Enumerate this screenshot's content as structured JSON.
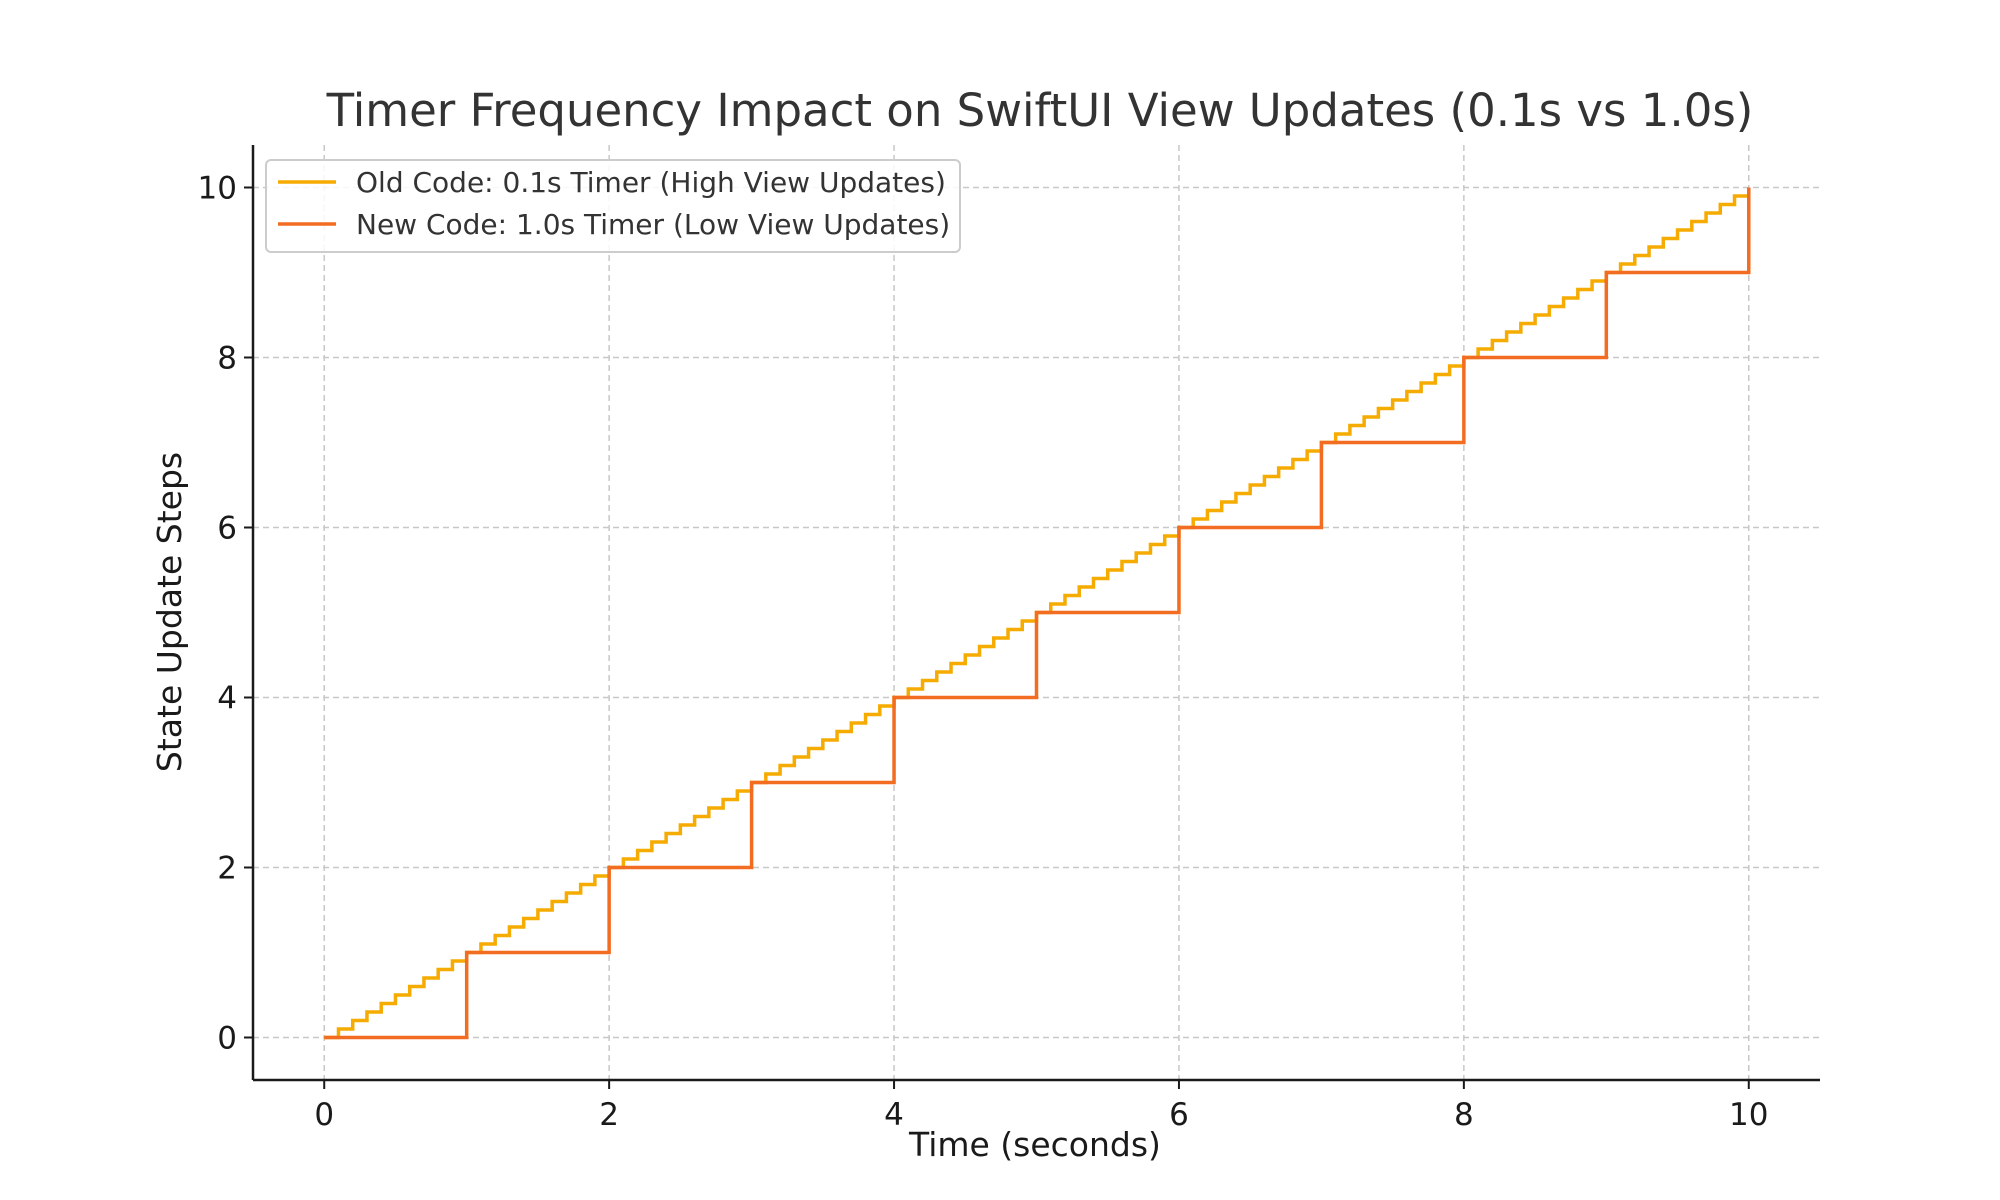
{
  "chart_data": {
    "type": "line",
    "step": "post",
    "title": "Timer Frequency Impact on SwiftUI View Updates (0.1s vs 1.0s)",
    "xlabel": "Time (seconds)",
    "ylabel": "State Update Steps",
    "xlim": [
      -0.5,
      10.5
    ],
    "ylim": [
      -0.5,
      10.5
    ],
    "xticks": [
      0,
      2,
      4,
      6,
      8,
      10
    ],
    "yticks": [
      0,
      2,
      4,
      6,
      8,
      10
    ],
    "grid": true,
    "legend_position": "top-left",
    "series": [
      {
        "name": "Old Code: 0.1s Timer (High View Updates)",
        "color": "#f5ab00",
        "step_interval": 0.1,
        "x": [
          0,
          0.1,
          0.2,
          0.3,
          0.4,
          0.5,
          0.6,
          0.7,
          0.8,
          0.9,
          1,
          1.1,
          1.2,
          1.3,
          1.4,
          1.5,
          1.6,
          1.7,
          1.8,
          1.9,
          2,
          2.1,
          2.2,
          2.3,
          2.4,
          2.5,
          2.6,
          2.7,
          2.8,
          2.9,
          3,
          3.1,
          3.2,
          3.3,
          3.4,
          3.5,
          3.6,
          3.7,
          3.8,
          3.9,
          4,
          4.1,
          4.2,
          4.3,
          4.4,
          4.5,
          4.6,
          4.7,
          4.8,
          4.9,
          5,
          5.1,
          5.2,
          5.3,
          5.4,
          5.5,
          5.6,
          5.7,
          5.8,
          5.9,
          6,
          6.1,
          6.2,
          6.3,
          6.4,
          6.5,
          6.6,
          6.7,
          6.8,
          6.9,
          7,
          7.1,
          7.2,
          7.3,
          7.4,
          7.5,
          7.6,
          7.7,
          7.8,
          7.9,
          8,
          8.1,
          8.2,
          8.3,
          8.4,
          8.5,
          8.6,
          8.7,
          8.8,
          8.9,
          9,
          9.1,
          9.2,
          9.3,
          9.4,
          9.5,
          9.6,
          9.7,
          9.8,
          9.9,
          10
        ],
        "y": [
          0,
          0.1,
          0.2,
          0.3,
          0.4,
          0.5,
          0.6,
          0.7,
          0.8,
          0.9,
          1,
          1.1,
          1.2,
          1.3,
          1.4,
          1.5,
          1.6,
          1.7,
          1.8,
          1.9,
          2,
          2.1,
          2.2,
          2.3,
          2.4,
          2.5,
          2.6,
          2.7,
          2.8,
          2.9,
          3,
          3.1,
          3.2,
          3.3,
          3.4,
          3.5,
          3.6,
          3.7,
          3.8,
          3.9,
          4,
          4.1,
          4.2,
          4.3,
          4.4,
          4.5,
          4.6,
          4.7,
          4.8,
          4.9,
          5,
          5.1,
          5.2,
          5.3,
          5.4,
          5.5,
          5.6,
          5.7,
          5.8,
          5.9,
          6,
          6.1,
          6.2,
          6.3,
          6.4,
          6.5,
          6.6,
          6.7,
          6.8,
          6.9,
          7,
          7.1,
          7.2,
          7.3,
          7.4,
          7.5,
          7.6,
          7.7,
          7.8,
          7.9,
          8,
          8.1,
          8.2,
          8.3,
          8.4,
          8.5,
          8.6,
          8.7,
          8.8,
          8.9,
          9,
          9.1,
          9.2,
          9.3,
          9.4,
          9.5,
          9.6,
          9.7,
          9.8,
          9.9,
          10
        ]
      },
      {
        "name": "New Code: 1.0s Timer (Low View Updates)",
        "color": "#f26d21",
        "step_interval": 1.0,
        "x": [
          0,
          1,
          2,
          3,
          4,
          5,
          6,
          7,
          8,
          9,
          10
        ],
        "y": [
          0,
          1,
          2,
          3,
          4,
          5,
          6,
          7,
          8,
          9,
          10
        ]
      }
    ]
  }
}
